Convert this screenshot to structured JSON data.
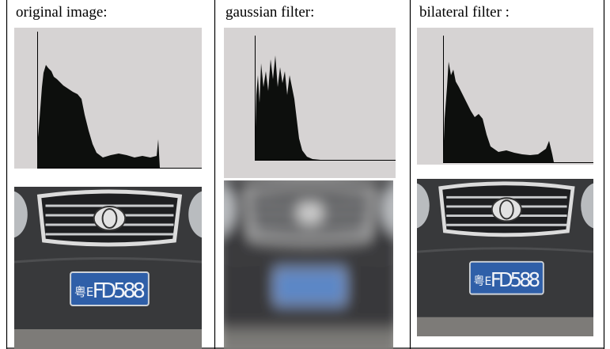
{
  "panels": [
    {
      "caption": "original image:",
      "plate_region": "粤E",
      "plate_number": "FD588"
    },
    {
      "caption": "gaussian filter:"
    },
    {
      "caption": "bilateral filter :",
      "plate_region": "粤E",
      "plate_number": "FD588"
    }
  ]
}
